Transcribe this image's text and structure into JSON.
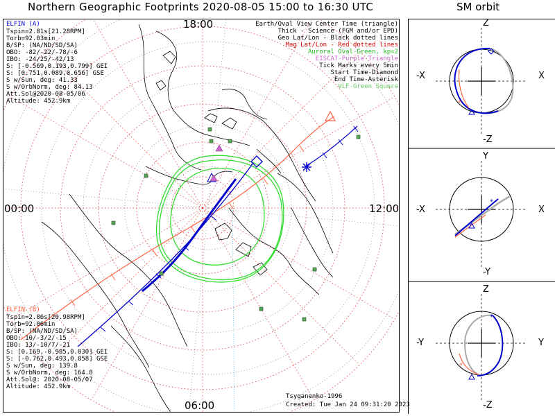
{
  "title": "Northern Geographic Footprints 2020-08-05 15:00 to 16:30 UTC",
  "orbit_title": "SM orbit",
  "hour_labels": {
    "top": "18:00",
    "bottom": "06:00",
    "left": "00:00",
    "right": "12:00"
  },
  "elfin_a": {
    "name": "ELFIN (A)",
    "lines": [
      "Tspin=2.81s[21.28RPM]",
      "Torb=92.03min",
      "B/SP: (NA/ND/SD/SA)",
      "OBO: -82/-22/-78/-6",
      "IBO: -24/25/-42/13",
      "S: [-0.569,0.193,0.799] GEI",
      "S: [0.751,0.089,0.656] GSE",
      "S w/Sun, deg: 41.33",
      "S w/OrbNorm, deg: 84.13",
      "Att.Sol@2020-08-05/06",
      "Altitude: 452.9km"
    ]
  },
  "elfin_b": {
    "name": "ELFIN (B)",
    "lines": [
      "Tspin=2.86s[20.98RPM]",
      "Torb=92.06min",
      "B/SP: (NA/ND/SD/SA)",
      "OBO: 10/-3/2/-15",
      "IBO: 13/-10/7/-21",
      "S: [0.169,-0.985,0.030] GEI",
      "S: [-0.762,0.493,0.858] GSE",
      "S w/Sun, deg: 139.8",
      "S w/OrbNorm, deg: 164.8",
      "Att.Sol@: 2020-08-05/07",
      "Altitude: 452.9km"
    ]
  },
  "legend": {
    "l1": "Earth/Oval View Center Time (triangle)",
    "l2": "Thick - Science (FGM and/or EPD)",
    "l3": "Geo Lat/Lon - Black dotted lines",
    "l4": "Mag Lat/Lon - Red dotted lines",
    "l5": "Auroral Oval-Green, kp=2",
    "l6": "EISCAT-Purple Triangle",
    "l7": "Tick Marks every 5min",
    "l8": "Start Time-Diamond",
    "l9": "End Time-Asterisk",
    "l10": "VLF-Green Square"
  },
  "credits": {
    "author": "Tsyganenko-1996",
    "created": "Created: Tue Jan 24 09:31:20 2023"
  },
  "orbit_panels": [
    {
      "top": "Z",
      "bottom": "-Z",
      "left": "-X",
      "right": "X"
    },
    {
      "top": "Y",
      "bottom": "-Y",
      "left": "-X",
      "right": "X"
    },
    {
      "top": "Z",
      "bottom": "-Z",
      "left": "-Y",
      "right": "Y"
    }
  ],
  "colors": {
    "elfin_a": "#0000cc",
    "elfin_b": "#ff6644",
    "auroral_oval": "#33dd33",
    "mag_grid": "#dd3333",
    "geo_grid": "#666666",
    "vlf": "#55aa55",
    "eiscat": "#cc66cc"
  }
}
